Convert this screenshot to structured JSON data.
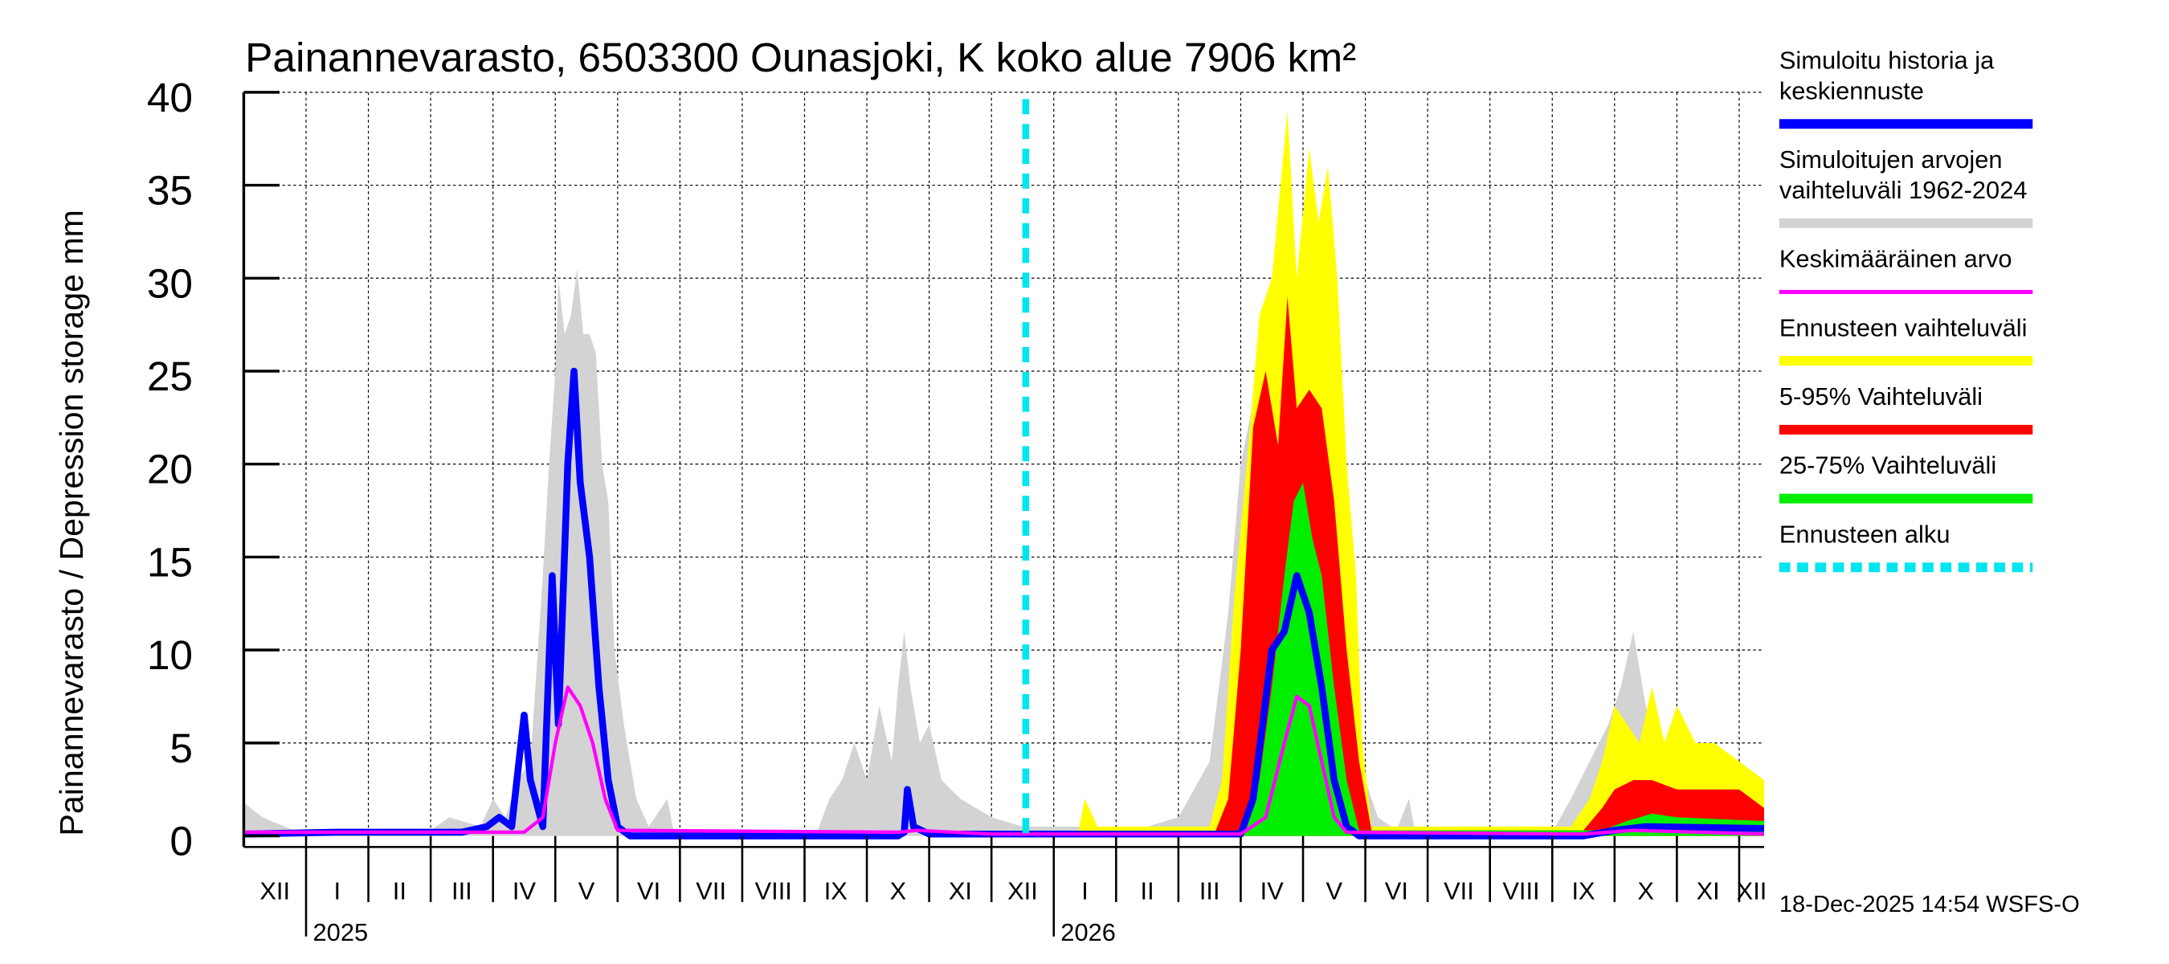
{
  "chart_data": {
    "type": "area",
    "title": "Painannevarasto, 6503300 Ounasjoki, K koko alue 7906 km²",
    "ylabel": "Painannevarasto / Depression storage    mm",
    "xlabel": "",
    "ylim": [
      0,
      40
    ],
    "yticks": [
      "0",
      "5",
      "10",
      "15",
      "20",
      "25",
      "30",
      "35",
      "40"
    ],
    "x_unit": "months since 1 Dec 2024",
    "xlim": [
      0,
      24.4
    ],
    "months": [
      "XII",
      "I",
      "II",
      "III",
      "IV",
      "V",
      "VI",
      "VII",
      "VIII",
      "IX",
      "X",
      "XI",
      "XII",
      "I",
      "II",
      "III",
      "IV",
      "V",
      "VI",
      "VII",
      "VIII",
      "IX",
      "X",
      "XI",
      "XII"
    ],
    "years": [
      {
        "label": "2025",
        "x": 1
      },
      {
        "label": "2026",
        "x": 13
      }
    ],
    "grid": true,
    "forecast_start_x": 12.55,
    "legend_position": "right",
    "legend": [
      {
        "label1": "Simuloitu historia ja",
        "label2": "keskiennuste",
        "color": "#0000ff",
        "style": "solid"
      },
      {
        "label1": "Simuloitujen arvojen",
        "label2": "vaihteluväli 1962-2024",
        "color": "#d3d3d3",
        "style": "solid"
      },
      {
        "label1": "Keskimääräinen arvo",
        "label2": "",
        "color": "#ff00ff",
        "style": "thin"
      },
      {
        "label1": "Ennusteen vaihteluväli",
        "label2": "",
        "color": "#ffff00",
        "style": "solid"
      },
      {
        "label1": "5-95% Vaihteluväli",
        "label2": "",
        "color": "#ff0000",
        "style": "solid"
      },
      {
        "label1": "25-75% Vaihteluväli",
        "label2": "",
        "color": "#00ee00",
        "style": "solid"
      },
      {
        "label1": "Ennusteen alku",
        "label2": "",
        "color": "#00e5ee",
        "style": "dashed"
      }
    ],
    "series": {
      "hist_range": [
        [
          0,
          1.8
        ],
        [
          0.3,
          1
        ],
        [
          0.8,
          0.3
        ],
        [
          3,
          0.3
        ],
        [
          3.3,
          1
        ],
        [
          3.8,
          0.5
        ],
        [
          4.0,
          2
        ],
        [
          4.2,
          1
        ],
        [
          4.4,
          3
        ],
        [
          4.6,
          4
        ],
        [
          4.8,
          14
        ],
        [
          4.9,
          20
        ],
        [
          5.0,
          25
        ],
        [
          5.05,
          30
        ],
        [
          5.15,
          27
        ],
        [
          5.25,
          28
        ],
        [
          5.35,
          30.5
        ],
        [
          5.45,
          27
        ],
        [
          5.55,
          27
        ],
        [
          5.65,
          26
        ],
        [
          5.75,
          20
        ],
        [
          5.85,
          18
        ],
        [
          5.95,
          10
        ],
        [
          6.1,
          6
        ],
        [
          6.3,
          2
        ],
        [
          6.5,
          0.5
        ],
        [
          6.8,
          2
        ],
        [
          6.9,
          0.2
        ],
        [
          9.2,
          0.2
        ],
        [
          9.4,
          2
        ],
        [
          9.6,
          3
        ],
        [
          9.8,
          5
        ],
        [
          10.0,
          3
        ],
        [
          10.2,
          7
        ],
        [
          10.4,
          4
        ],
        [
          10.5,
          8
        ],
        [
          10.6,
          11
        ],
        [
          10.7,
          8
        ],
        [
          10.85,
          5
        ],
        [
          11.0,
          6
        ],
        [
          11.2,
          3
        ],
        [
          11.5,
          2
        ],
        [
          12.0,
          1
        ],
        [
          12.5,
          0.5
        ],
        [
          14.5,
          0.5
        ],
        [
          15,
          1
        ],
        [
          15.5,
          4
        ],
        [
          15.8,
          12
        ],
        [
          16.0,
          20
        ],
        [
          16.3,
          25
        ],
        [
          16.6,
          30
        ],
        [
          16.9,
          26
        ],
        [
          17.1,
          29
        ],
        [
          17.3,
          26
        ],
        [
          17.6,
          17
        ],
        [
          17.8,
          8
        ],
        [
          18.0,
          3
        ],
        [
          18.2,
          1
        ],
        [
          18.5,
          0.3
        ],
        [
          18.7,
          2
        ],
        [
          18.8,
          0.2
        ],
        [
          21.0,
          0.2
        ],
        [
          21.3,
          2
        ],
        [
          21.6,
          4
        ],
        [
          21.9,
          6
        ],
        [
          22.1,
          8
        ],
        [
          22.3,
          11
        ],
        [
          22.5,
          7
        ],
        [
          22.7,
          5
        ],
        [
          23.0,
          4
        ],
        [
          23.5,
          3
        ],
        [
          24.4,
          2
        ]
      ],
      "forecast_range": [
        [
          12.6,
          0
        ],
        [
          13.4,
          0.3
        ],
        [
          13.5,
          2
        ],
        [
          13.7,
          0.5
        ],
        [
          15.5,
          0.5
        ],
        [
          15.7,
          3
        ],
        [
          15.9,
          13
        ],
        [
          16.1,
          20
        ],
        [
          16.3,
          28
        ],
        [
          16.5,
          30
        ],
        [
          16.75,
          39
        ],
        [
          16.9,
          30
        ],
        [
          17.1,
          37
        ],
        [
          17.25,
          33
        ],
        [
          17.4,
          36
        ],
        [
          17.55,
          30
        ],
        [
          17.7,
          20
        ],
        [
          17.85,
          14
        ],
        [
          17.95,
          5
        ],
        [
          18.1,
          0.5
        ],
        [
          21.3,
          0.5
        ],
        [
          21.6,
          2
        ],
        [
          21.8,
          4
        ],
        [
          22.0,
          7
        ],
        [
          22.2,
          6
        ],
        [
          22.4,
          5
        ],
        [
          22.6,
          8
        ],
        [
          22.8,
          5
        ],
        [
          23.0,
          7
        ],
        [
          23.3,
          5
        ],
        [
          23.6,
          5
        ],
        [
          24.0,
          4
        ],
        [
          24.4,
          3
        ]
      ],
      "p5_95": [
        [
          15.6,
          0.3
        ],
        [
          15.8,
          2
        ],
        [
          16.0,
          10
        ],
        [
          16.2,
          22
        ],
        [
          16.4,
          25
        ],
        [
          16.6,
          21
        ],
        [
          16.75,
          29
        ],
        [
          16.9,
          23
        ],
        [
          17.1,
          24
        ],
        [
          17.3,
          23
        ],
        [
          17.5,
          18
        ],
        [
          17.7,
          10
        ],
        [
          17.9,
          4
        ],
        [
          18.1,
          0.3
        ],
        [
          21.5,
          0.3
        ],
        [
          21.8,
          1.5
        ],
        [
          22.0,
          2.5
        ],
        [
          22.3,
          3
        ],
        [
          22.6,
          3
        ],
        [
          23.0,
          2.5
        ],
        [
          23.5,
          2.5
        ],
        [
          24.0,
          2.5
        ],
        [
          24.4,
          1.5
        ]
      ],
      "p25_75": [
        [
          16.0,
          0.3
        ],
        [
          16.3,
          3
        ],
        [
          16.5,
          8
        ],
        [
          16.7,
          14
        ],
        [
          16.85,
          18
        ],
        [
          17.0,
          19
        ],
        [
          17.15,
          16
        ],
        [
          17.3,
          14
        ],
        [
          17.5,
          8
        ],
        [
          17.7,
          3
        ],
        [
          17.9,
          0.3
        ],
        [
          21.8,
          0.3
        ],
        [
          22.2,
          0.8
        ],
        [
          22.6,
          1.2
        ],
        [
          23.0,
          1
        ],
        [
          24.4,
          0.8
        ]
      ],
      "simulated": [
        [
          0,
          0.1
        ],
        [
          1.5,
          0.2
        ],
        [
          3.5,
          0.2
        ],
        [
          3.9,
          0.5
        ],
        [
          4.1,
          1
        ],
        [
          4.3,
          0.5
        ],
        [
          4.5,
          6.5
        ],
        [
          4.6,
          3
        ],
        [
          4.8,
          0.5
        ],
        [
          4.95,
          14
        ],
        [
          5.05,
          6
        ],
        [
          5.2,
          20
        ],
        [
          5.3,
          25
        ],
        [
          5.4,
          19
        ],
        [
          5.55,
          15
        ],
        [
          5.7,
          8
        ],
        [
          5.85,
          3
        ],
        [
          6.0,
          0.5
        ],
        [
          6.2,
          0
        ],
        [
          10.5,
          0
        ],
        [
          10.6,
          0.2
        ],
        [
          10.65,
          2.5
        ],
        [
          10.75,
          0.5
        ],
        [
          11,
          0.1
        ],
        [
          16,
          0.1
        ],
        [
          16.2,
          2
        ],
        [
          16.5,
          10
        ],
        [
          16.7,
          11
        ],
        [
          16.9,
          14
        ],
        [
          17.1,
          12
        ],
        [
          17.3,
          8
        ],
        [
          17.5,
          3
        ],
        [
          17.7,
          0.5
        ],
        [
          17.9,
          0
        ],
        [
          21.5,
          0
        ],
        [
          22,
          0.3
        ],
        [
          22.5,
          0.5
        ],
        [
          24.4,
          0.4
        ]
      ],
      "mean": [
        [
          0,
          0.2
        ],
        [
          4.5,
          0.2
        ],
        [
          4.8,
          1
        ],
        [
          5.0,
          5
        ],
        [
          5.2,
          8
        ],
        [
          5.4,
          7
        ],
        [
          5.6,
          5
        ],
        [
          5.8,
          2
        ],
        [
          6.0,
          0.3
        ],
        [
          10.5,
          0.2
        ],
        [
          10.8,
          0.3
        ],
        [
          12,
          0.1
        ],
        [
          16,
          0.1
        ],
        [
          16.4,
          1
        ],
        [
          16.7,
          5
        ],
        [
          16.9,
          7.5
        ],
        [
          17.1,
          7
        ],
        [
          17.3,
          4
        ],
        [
          17.5,
          1
        ],
        [
          17.7,
          0.2
        ],
        [
          21.5,
          0.1
        ],
        [
          22.3,
          0.3
        ],
        [
          24.4,
          0.1
        ]
      ]
    },
    "footer": "18-Dec-2025 14:54 WSFS-O"
  }
}
